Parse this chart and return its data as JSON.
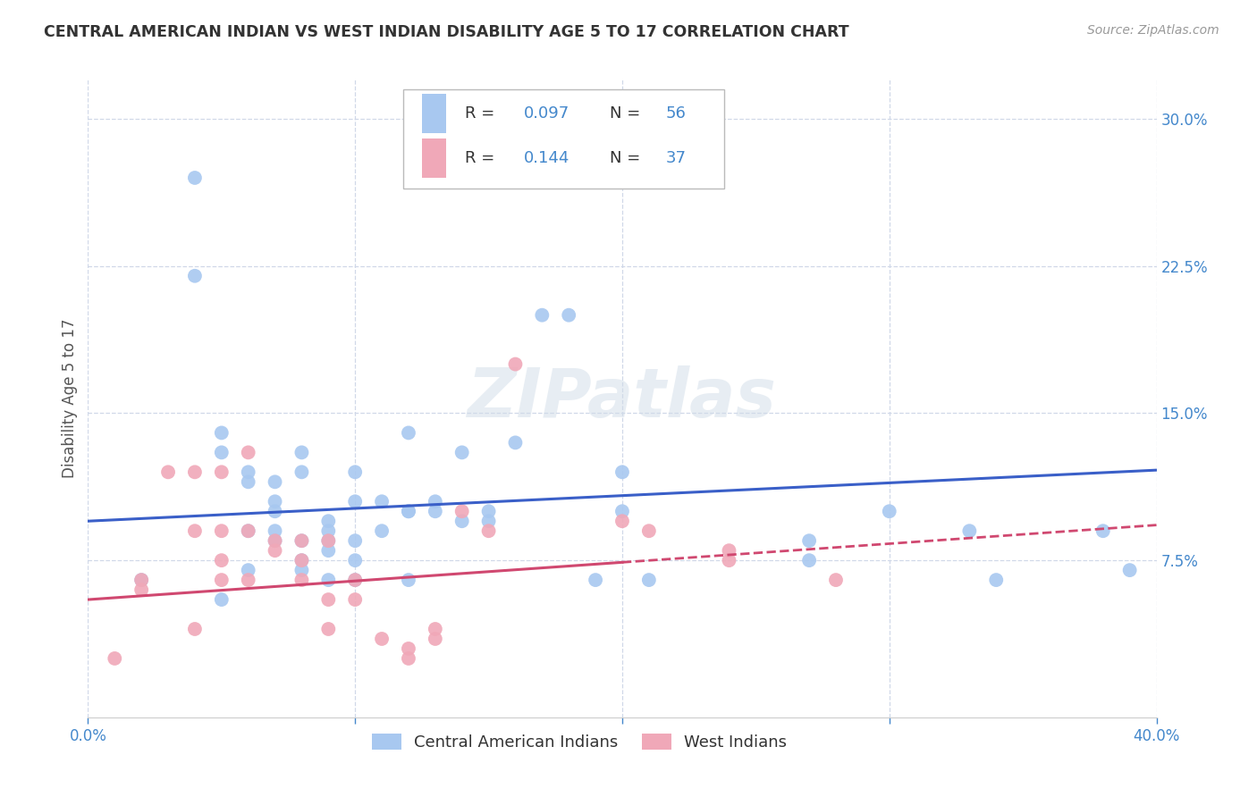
{
  "title": "CENTRAL AMERICAN INDIAN VS WEST INDIAN DISABILITY AGE 5 TO 17 CORRELATION CHART",
  "source": "Source: ZipAtlas.com",
  "ylabel": "Disability Age 5 to 17",
  "xlim": [
    0.0,
    0.4
  ],
  "ylim": [
    -0.005,
    0.32
  ],
  "xticks": [
    0.0,
    0.1,
    0.2,
    0.3,
    0.4
  ],
  "yticks": [
    0.075,
    0.15,
    0.225,
    0.3
  ],
  "xticklabels": [
    "0.0%",
    "",
    "",
    "",
    "40.0%"
  ],
  "yticklabels": [
    "7.5%",
    "15.0%",
    "22.5%",
    "30.0%"
  ],
  "blue_color": "#a8c8f0",
  "pink_color": "#f0a8b8",
  "blue_line_color": "#3a5fc8",
  "pink_line_color": "#d04870",
  "background_color": "#ffffff",
  "grid_color": "#d0d8e8",
  "watermark": "ZIPatlas",
  "legend_label1": "Central American Indians",
  "legend_label2": "West Indians",
  "blue_scatter_x": [
    0.02,
    0.04,
    0.04,
    0.05,
    0.05,
    0.05,
    0.06,
    0.06,
    0.06,
    0.06,
    0.07,
    0.07,
    0.07,
    0.07,
    0.07,
    0.08,
    0.08,
    0.08,
    0.08,
    0.08,
    0.09,
    0.09,
    0.09,
    0.09,
    0.09,
    0.1,
    0.1,
    0.1,
    0.1,
    0.1,
    0.11,
    0.11,
    0.12,
    0.12,
    0.12,
    0.12,
    0.13,
    0.13,
    0.14,
    0.14,
    0.15,
    0.15,
    0.16,
    0.17,
    0.18,
    0.19,
    0.2,
    0.2,
    0.21,
    0.27,
    0.27,
    0.3,
    0.33,
    0.34,
    0.38,
    0.39
  ],
  "blue_scatter_y": [
    0.065,
    0.27,
    0.22,
    0.14,
    0.13,
    0.055,
    0.12,
    0.115,
    0.09,
    0.07,
    0.115,
    0.105,
    0.1,
    0.09,
    0.085,
    0.13,
    0.12,
    0.085,
    0.075,
    0.07,
    0.095,
    0.09,
    0.085,
    0.08,
    0.065,
    0.12,
    0.105,
    0.085,
    0.075,
    0.065,
    0.105,
    0.09,
    0.14,
    0.1,
    0.1,
    0.065,
    0.105,
    0.1,
    0.13,
    0.095,
    0.1,
    0.095,
    0.135,
    0.2,
    0.2,
    0.065,
    0.12,
    0.1,
    0.065,
    0.085,
    0.075,
    0.1,
    0.09,
    0.065,
    0.09,
    0.07
  ],
  "pink_scatter_x": [
    0.01,
    0.02,
    0.02,
    0.03,
    0.04,
    0.04,
    0.04,
    0.05,
    0.05,
    0.05,
    0.05,
    0.06,
    0.06,
    0.06,
    0.07,
    0.07,
    0.08,
    0.08,
    0.08,
    0.09,
    0.09,
    0.09,
    0.1,
    0.1,
    0.11,
    0.12,
    0.12,
    0.13,
    0.13,
    0.14,
    0.15,
    0.16,
    0.2,
    0.21,
    0.24,
    0.24,
    0.28
  ],
  "pink_scatter_y": [
    0.025,
    0.065,
    0.06,
    0.12,
    0.12,
    0.09,
    0.04,
    0.12,
    0.09,
    0.075,
    0.065,
    0.13,
    0.09,
    0.065,
    0.085,
    0.08,
    0.085,
    0.075,
    0.065,
    0.085,
    0.055,
    0.04,
    0.065,
    0.055,
    0.035,
    0.03,
    0.025,
    0.04,
    0.035,
    0.1,
    0.09,
    0.175,
    0.095,
    0.09,
    0.08,
    0.075,
    0.065
  ],
  "blue_line_x0": 0.0,
  "blue_line_x1": 0.4,
  "blue_line_y0": 0.095,
  "blue_line_y1": 0.121,
  "pink_line_x0": 0.0,
  "pink_line_x1": 0.4,
  "pink_line_y0": 0.055,
  "pink_line_y1": 0.093
}
